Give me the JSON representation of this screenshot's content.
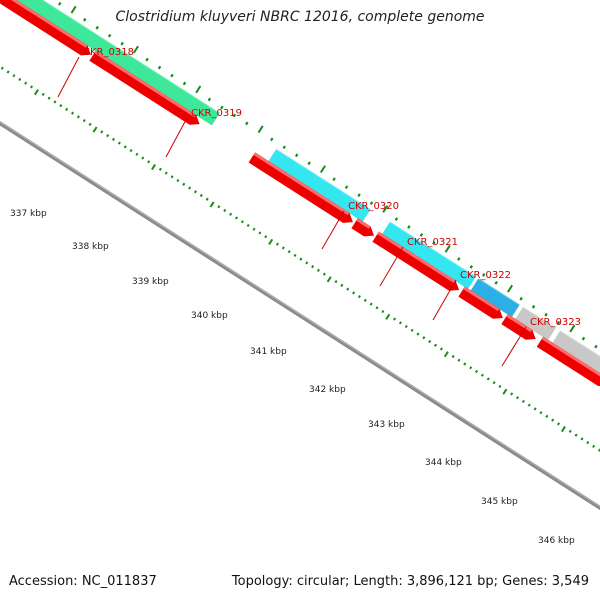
{
  "title": "Clostridium kluyveri NBRC 12016, complete genome",
  "footer": {
    "accession": "Accession: NC_011837",
    "topology": "Topology: circular; Length: 3,896,121 bp; Genes: 3,549"
  },
  "genes": [
    {
      "id": "CKR_0318"
    },
    {
      "id": "CKR_0319"
    },
    {
      "id": "CKR_0320"
    },
    {
      "id": "CKR_0321"
    },
    {
      "id": "CKR_0322"
    },
    {
      "id": "CKR_0323"
    }
  ],
  "scale_labels": [
    "337 kbp",
    "338 kbp",
    "339 kbp",
    "340 kbp",
    "341 kbp",
    "342 kbp",
    "343 kbp",
    "344 kbp",
    "345 kbp",
    "346 kbp"
  ],
  "colors": {
    "green_track": "#3ee89a",
    "cyan_track": "#33e6f0",
    "blue_track": "#2ab0e6",
    "gray_track": "#c8c8c8",
    "red_gene": "#ee0000",
    "backbone": "#8c8c8c",
    "tick": "#1a8a1a",
    "label_red": "#cc0000"
  }
}
